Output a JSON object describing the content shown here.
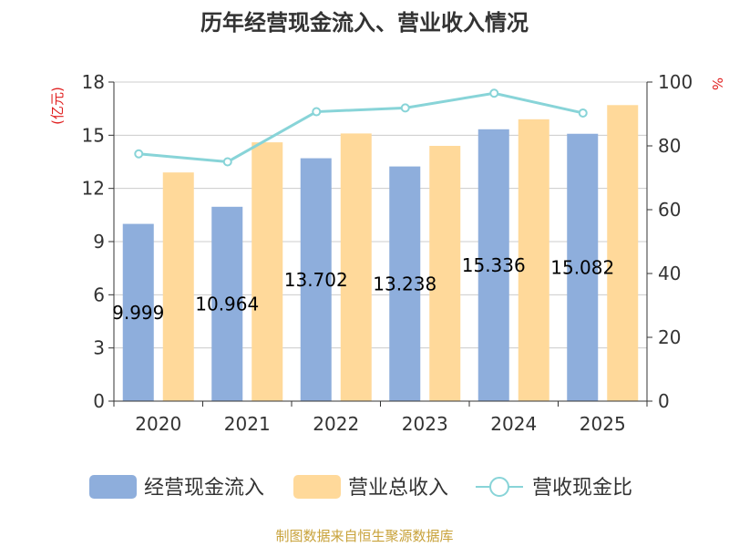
{
  "chart_data": {
    "type": "bar",
    "title": "历年经营现金流入、营业收入情况",
    "categories": [
      "2020",
      "2021",
      "2022",
      "2023",
      "2024",
      "2025"
    ],
    "series": [
      {
        "name": "经营现金流入",
        "type": "bar",
        "axis": "left",
        "color": "#8eaedc",
        "values": [
          9.999,
          10.964,
          13.702,
          13.238,
          15.336,
          15.082
        ],
        "labels": [
          "9.999",
          "10.964",
          "13.702",
          "13.238",
          "15.336",
          "15.082"
        ]
      },
      {
        "name": "营业总收入",
        "type": "bar",
        "axis": "left",
        "color": "#ffd99a",
        "values": [
          12.9,
          14.6,
          15.1,
          14.4,
          15.9,
          16.7
        ]
      },
      {
        "name": "营收现金比",
        "type": "line",
        "axis": "right",
        "color": "#88d4d8",
        "values": [
          77.5,
          75.0,
          90.7,
          91.9,
          96.5,
          90.3
        ]
      }
    ],
    "left_axis": {
      "unit": "(亿元)",
      "min": 0,
      "max": 18,
      "ticks": [
        "0",
        "3",
        "6",
        "9",
        "12",
        "15",
        "18"
      ]
    },
    "right_axis": {
      "unit": "%",
      "min": 0,
      "max": 100,
      "ticks": [
        "0",
        "20",
        "40",
        "60",
        "80",
        "100"
      ]
    },
    "grid": true,
    "legend_position": "bottom"
  },
  "footer": {
    "source": "制图数据来自恒生聚源数据库"
  }
}
